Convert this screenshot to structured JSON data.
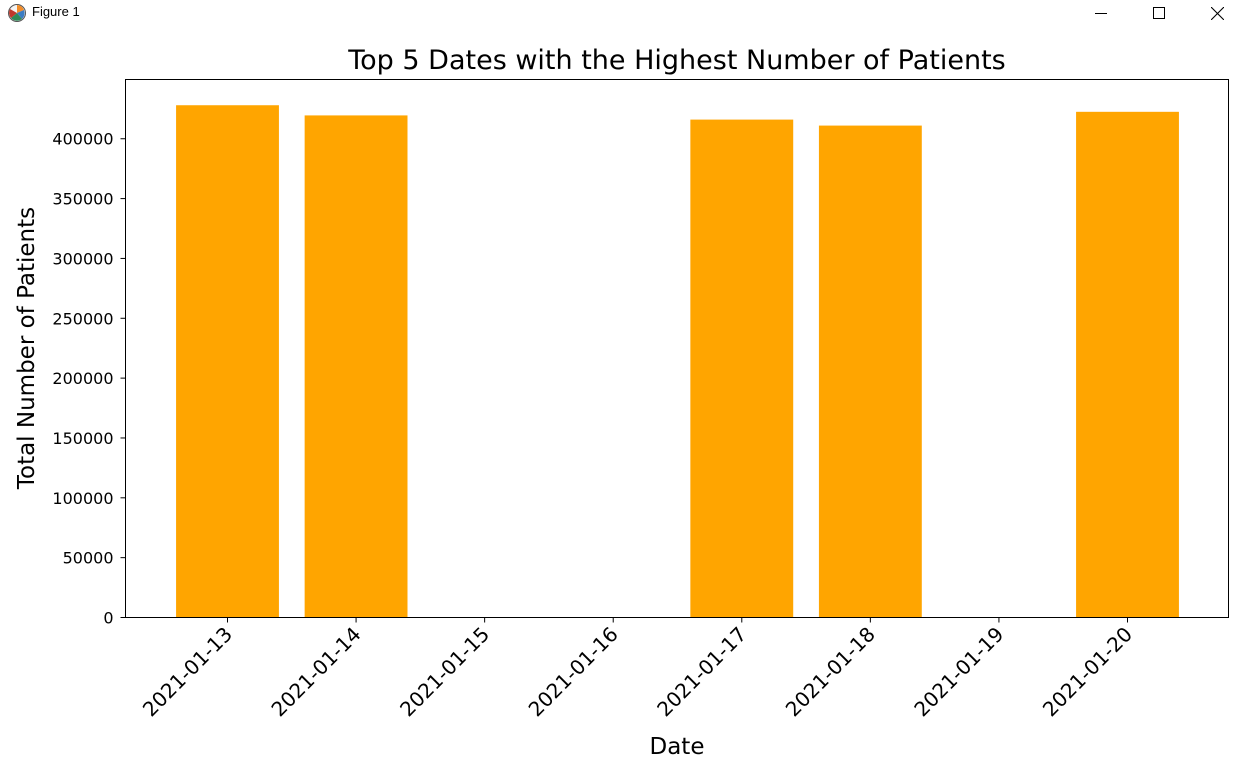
{
  "window": {
    "title": "Figure 1",
    "icon": "matplotlib-figure-icon",
    "controls": [
      "minimize-icon",
      "maximize-icon",
      "close-icon"
    ]
  },
  "chart_data": {
    "type": "bar",
    "title": "Top 5 Dates with the Highest Number of Patients",
    "xlabel": "Date",
    "ylabel": "Total Number of Patients",
    "categories": [
      "2021-01-13",
      "2021-01-14",
      "2021-01-17",
      "2021-01-18",
      "2021-01-20"
    ],
    "values": [
      428000,
      419500,
      416000,
      411000,
      422500
    ],
    "x_ticks": [
      "2021-01-13",
      "2021-01-14",
      "2021-01-15",
      "2021-01-16",
      "2021-01-17",
      "2021-01-18",
      "2021-01-19",
      "2021-01-20"
    ],
    "y_ticks": [
      0,
      50000,
      100000,
      150000,
      200000,
      250000,
      300000,
      350000,
      400000
    ],
    "ylim": [
      0,
      449500
    ],
    "grid": false,
    "bar_color": "#FFA500"
  }
}
